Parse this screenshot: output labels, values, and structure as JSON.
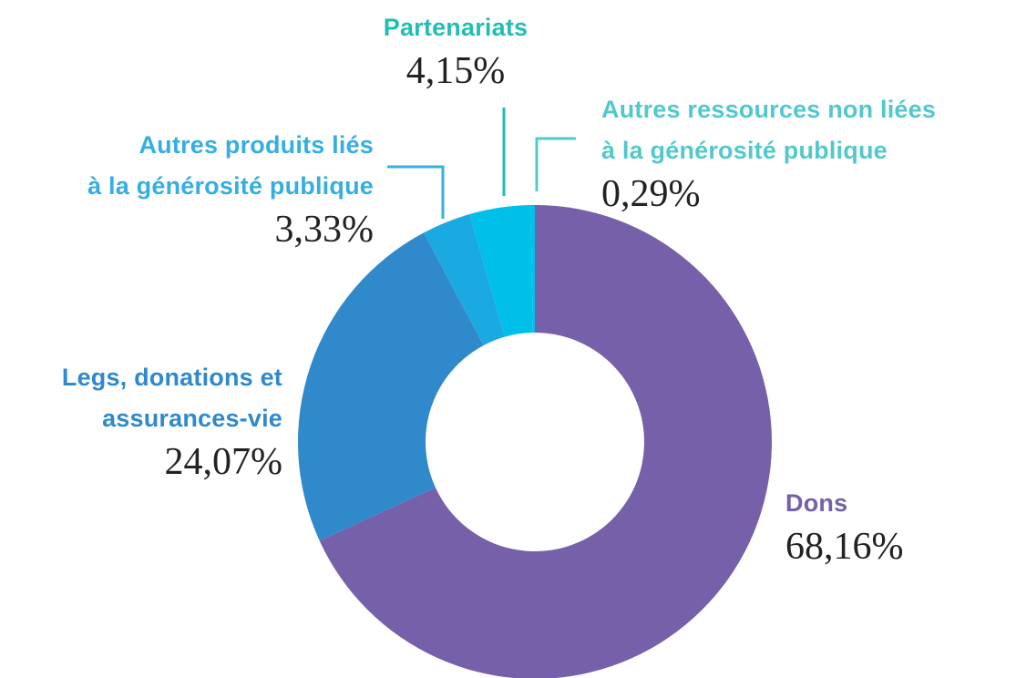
{
  "chart_data": {
    "type": "donut",
    "categories": [
      "Dons",
      "Legs, donations et\nassurances-vie",
      "Autres produits liés\nà la générosité publique",
      "Partenariats",
      "Autres ressources non liées\nà la générosité publique"
    ],
    "values": [
      68.16,
      24.07,
      3.33,
      4.15,
      0.29
    ],
    "value_labels": [
      "68,16%",
      "24,07%",
      "3,33%",
      "4,15%",
      "0,29%"
    ],
    "colors": [
      "#7660a9",
      "#2f89cb",
      "#1ba9e1",
      "#00c0e9",
      "#00c0e9"
    ],
    "label_colors": [
      "#7660a9",
      "#2f89cb",
      "#35aee0",
      "#22bdb3",
      "#52c8cc"
    ]
  }
}
